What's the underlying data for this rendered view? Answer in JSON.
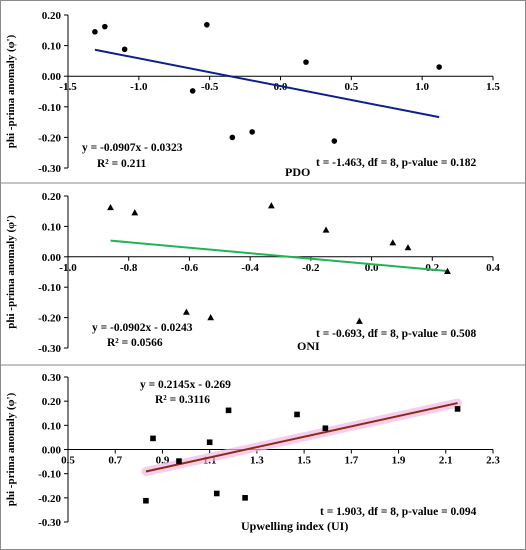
{
  "chart_data": [
    {
      "type": "scatter",
      "panel_label": "PDO",
      "ylabel": "phi -prima anomaly (φ')",
      "xlim": [
        -1.5,
        1.5
      ],
      "ylim": [
        -0.3,
        0.2
      ],
      "x_ticks": [
        "-1.5",
        "-1.0",
        "-0.5",
        "0.0",
        "0.5",
        "1.0",
        "1.5"
      ],
      "y_ticks": [
        "0.20",
        "0.10",
        "0.00",
        "-0.10",
        "-0.20",
        "-0.30"
      ],
      "marker": "circle",
      "points": [
        {
          "x": -1.31,
          "y": 0.145
        },
        {
          "x": -1.24,
          "y": 0.162
        },
        {
          "x": -1.1,
          "y": 0.088
        },
        {
          "x": -0.62,
          "y": -0.048
        },
        {
          "x": -0.52,
          "y": 0.168
        },
        {
          "x": -0.34,
          "y": -0.2
        },
        {
          "x": -0.2,
          "y": -0.182
        },
        {
          "x": 0.18,
          "y": 0.046
        },
        {
          "x": 0.38,
          "y": -0.212
        },
        {
          "x": 1.12,
          "y": 0.03
        }
      ],
      "trendline": {
        "x": [
          -1.31,
          1.12
        ],
        "slope": -0.0907,
        "intercept": -0.0323,
        "color": "#0d1f8c"
      },
      "equation": "y = -0.0907x - 0.0323",
      "r2": "R² = 0.211",
      "stats": "t = -1.463, df = 8, p-value = 0.182"
    },
    {
      "type": "scatter",
      "panel_label": "ONI",
      "ylabel": "phi -prima anomaly (φ')",
      "xlim": [
        -1.0,
        0.4
      ],
      "ylim": [
        -0.3,
        0.2
      ],
      "x_ticks": [
        "-1.0",
        "-0.8",
        "-0.6",
        "-0.4",
        "-0.2",
        "0.0",
        "0.2",
        "0.4"
      ],
      "y_ticks": [
        "0.20",
        "0.10",
        "0.00",
        "-0.10",
        "-0.20",
        "-0.30"
      ],
      "marker": "triangle",
      "points": [
        {
          "x": -0.86,
          "y": 0.162
        },
        {
          "x": -0.78,
          "y": 0.145
        },
        {
          "x": -0.61,
          "y": -0.182
        },
        {
          "x": -0.53,
          "y": -0.2
        },
        {
          "x": -0.33,
          "y": 0.168
        },
        {
          "x": -0.15,
          "y": 0.088
        },
        {
          "x": -0.04,
          "y": -0.212
        },
        {
          "x": 0.07,
          "y": 0.046
        },
        {
          "x": 0.12,
          "y": 0.03
        },
        {
          "x": 0.25,
          "y": -0.048
        }
      ],
      "trendline": {
        "x": [
          -0.86,
          0.25
        ],
        "slope": -0.0902,
        "intercept": -0.0243,
        "color": "#1fb454"
      },
      "equation": "y = -0.0902x - 0.0243",
      "r2": "R² = 0.0566",
      "stats": "t = -0.693, df = 8, p-value = 0.508"
    },
    {
      "type": "scatter",
      "panel_label": "Upwelling index (UI)",
      "ylabel": "phi -prima anomaly (φ')",
      "xlim": [
        0.5,
        2.3
      ],
      "ylim": [
        -0.3,
        0.3
      ],
      "x_ticks": [
        "0.5",
        "0.7",
        "0.9",
        "1.1",
        "1.3",
        "1.5",
        "1.7",
        "1.9",
        "2.1",
        "2.3"
      ],
      "y_ticks": [
        "0.30",
        "0.20",
        "0.10",
        "0.00",
        "-0.10",
        "-0.20",
        "-0.30"
      ],
      "marker": "square",
      "points": [
        {
          "x": 0.83,
          "y": -0.212
        },
        {
          "x": 0.86,
          "y": 0.046
        },
        {
          "x": 0.97,
          "y": -0.048
        },
        {
          "x": 1.1,
          "y": 0.03
        },
        {
          "x": 1.13,
          "y": -0.182
        },
        {
          "x": 1.18,
          "y": 0.162
        },
        {
          "x": 1.25,
          "y": -0.2
        },
        {
          "x": 1.47,
          "y": 0.145
        },
        {
          "x": 1.59,
          "y": 0.088
        },
        {
          "x": 2.15,
          "y": 0.168
        }
      ],
      "trendline": {
        "x": [
          0.83,
          2.15
        ],
        "slope": 0.2145,
        "intercept": -0.269,
        "color": "#8b2b16",
        "halo": "#f2b8e6"
      },
      "equation": "y = 0.2145x - 0.269",
      "r2": "R² = 0.3116",
      "stats": "t = 1.903, df = 8, p-value = 0.094"
    }
  ]
}
